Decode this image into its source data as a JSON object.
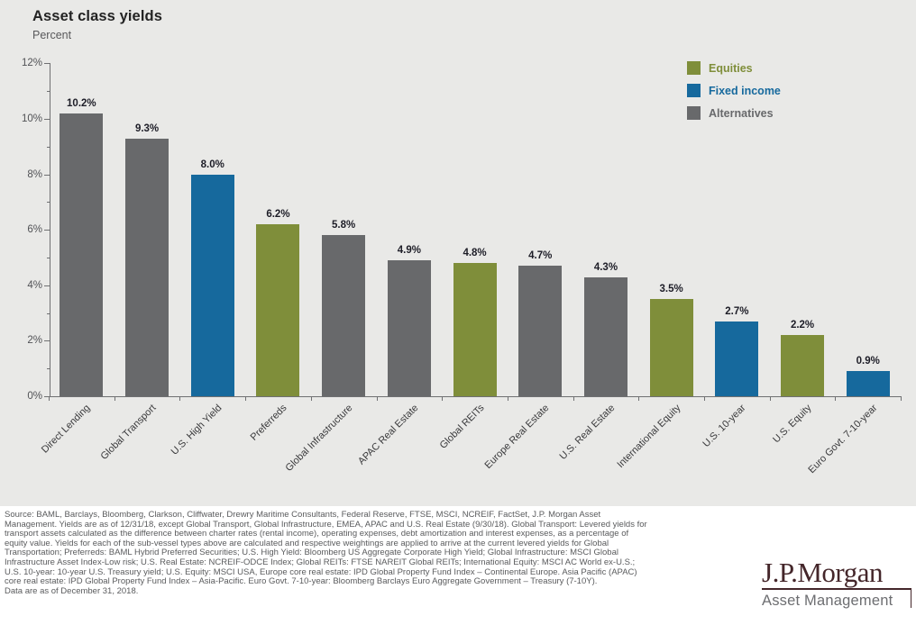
{
  "header": {
    "title": "Asset class yields",
    "subtitle": "Percent"
  },
  "chart_data": {
    "type": "bar",
    "title": "Asset class yields",
    "ylabel": "Percent",
    "ylim": [
      0,
      12
    ],
    "ytick_step": 2,
    "ytick_labels": [
      "0%",
      "2%",
      "4%",
      "6%",
      "8%",
      "10%",
      "12%"
    ],
    "grid": false,
    "legend_position": "top-right",
    "categories": [
      "Direct Lending",
      "Global Transport",
      "U.S. High Yield",
      "Preferreds",
      "Global Infrastructure",
      "APAC Real Estate",
      "Global REITs",
      "Europe Real Estate",
      "U.S. Real Estate",
      "International Equity",
      "U.S. 10-year",
      "U.S. Equity",
      "Euro Govt. 7-10-year"
    ],
    "values": [
      10.2,
      9.3,
      8.0,
      6.2,
      5.8,
      4.9,
      4.8,
      4.7,
      4.3,
      3.5,
      2.7,
      2.2,
      0.9
    ],
    "value_labels": [
      "10.2%",
      "9.3%",
      "8.0%",
      "6.2%",
      "5.8%",
      "4.9%",
      "4.8%",
      "4.7%",
      "4.3%",
      "3.5%",
      "2.7%",
      "2.2%",
      "0.9%"
    ],
    "groups": [
      "alternatives",
      "alternatives",
      "fixed_income",
      "equities",
      "alternatives",
      "alternatives",
      "equities",
      "alternatives",
      "alternatives",
      "equities",
      "fixed_income",
      "equities",
      "fixed_income"
    ]
  },
  "legend": [
    {
      "label": "Equities",
      "color": "#7f8e3a",
      "group": "equities"
    },
    {
      "label": "Fixed income",
      "color": "#16699d",
      "group": "fixed_income"
    },
    {
      "label": "Alternatives",
      "color": "#68696b",
      "group": "alternatives"
    }
  ],
  "colors": {
    "equities": "#7f8e3a",
    "fixed_income": "#16699d",
    "alternatives": "#68696b",
    "panel_bg": "#e9e9e7",
    "axis": "#6f7072",
    "value_label": "#1d1d27"
  },
  "footnote": {
    "lines": [
      "Source: BAML, Barclays, Bloomberg, Clarkson, Cliffwater, Drewry Maritime Consultants, Federal Reserve, FTSE, MSCI, NCREIF, FactSet, J.P. Morgan Asset",
      "Management. Yields are as of 12/31/18, except Global Transport, Global Infrastructure, EMEA, APAC and U.S. Real Estate (9/30/18). Global Transport: Levered yields for",
      "transport assets calculated as the difference between charter rates (rental income), operating expenses, debt amortization and interest expenses, as a percentage of",
      "equity value. Yields for each of the sub-vessel types above are calculated and respective weightings are applied to arrive at the current levered yields for Global",
      "Transportation; Preferreds: BAML Hybrid Preferred Securities; U.S. High Yield: Bloomberg US Aggregate Corporate High Yield; Global Infrastructure: MSCI Global",
      "Infrastructure Asset Index-Low risk; U.S. Real Estate: NCREIF-ODCE Index; Global REITs: FTSE NAREIT Global REITs; International Equity: MSCI AC World ex-U.S.;",
      "U.S. 10-year: 10-year U.S. Treasury yield; U.S. Equity: MSCI USA, Europe core real estate: IPD Global Property Fund Index – Continental Europe. Asia Pacific (APAC)",
      "core real estate: IPD Global Property Fund Index – Asia-Pacific. Euro Govt. 7-10-year: Bloomberg Barclays Euro Aggregate Government – Treasury (7-10Y).",
      "Data are as of December 31, 2018."
    ]
  },
  "logo": {
    "name": "J.P.Morgan",
    "division": "Asset Management"
  }
}
